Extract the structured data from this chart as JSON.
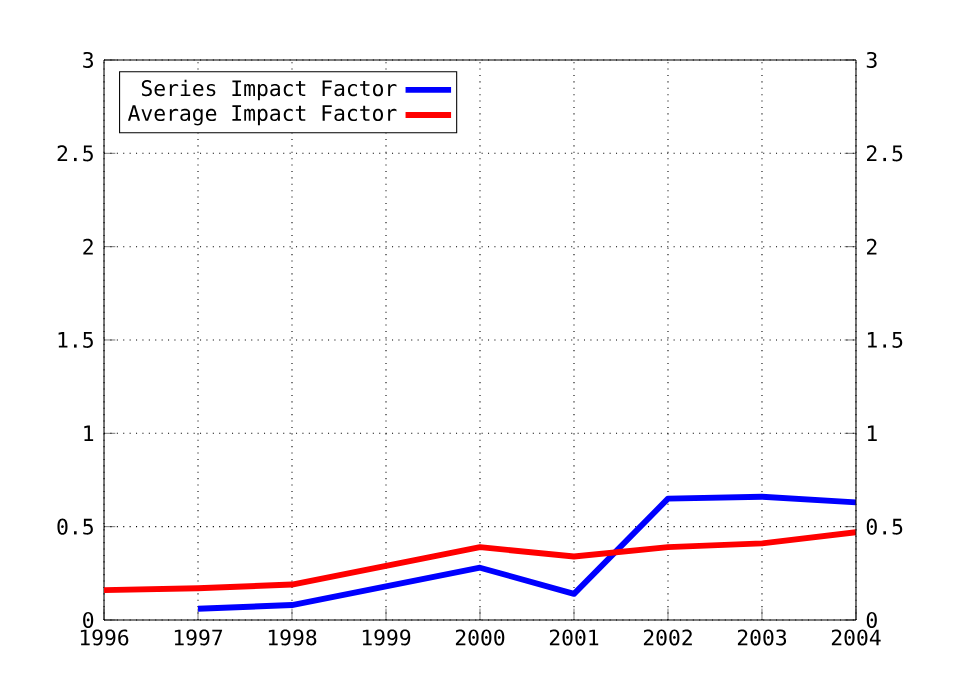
{
  "chart_data": {
    "type": "line",
    "x": [
      1996,
      1997,
      1998,
      1999,
      2000,
      2001,
      2002,
      2003,
      2004
    ],
    "series": [
      {
        "name": "Series Impact Factor",
        "color": "#0000ff",
        "values": [
          null,
          0.06,
          0.08,
          0.18,
          0.28,
          0.14,
          0.65,
          0.66,
          0.63
        ]
      },
      {
        "name": "Average Impact Factor",
        "color": "#ff0000",
        "values": [
          0.16,
          0.17,
          0.19,
          0.29,
          0.39,
          0.34,
          0.39,
          0.41,
          0.47
        ]
      }
    ],
    "xlim": [
      1996,
      2004
    ],
    "xticks": [
      1996,
      1997,
      1998,
      1999,
      2000,
      2001,
      2002,
      2003,
      2004
    ],
    "ylim": [
      0,
      3
    ],
    "yticks": [
      0,
      0.5,
      1,
      1.5,
      2,
      2.5,
      3
    ],
    "y2lim": [
      0,
      3
    ],
    "y2ticks": [
      0,
      0.5,
      1,
      1.5,
      2,
      2.5,
      3
    ],
    "grid": true,
    "legend": "top left",
    "marker": "none",
    "line_style": "solid"
  }
}
